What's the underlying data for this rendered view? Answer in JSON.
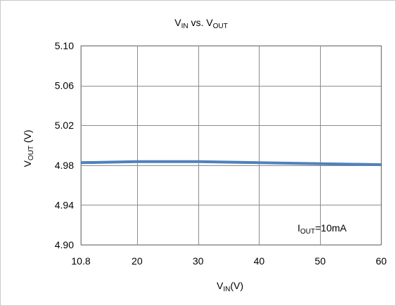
{
  "chart_data": {
    "type": "line",
    "title": {
      "main": "V",
      "main_sub": "IN",
      "mid": " vs. V",
      "tail_sub": "OUT"
    },
    "xlabel": {
      "main": "V",
      "sub": "IN",
      "unit": "(V)"
    },
    "ylabel": {
      "main": "V",
      "sub": "OUT",
      "unit": " (V)"
    },
    "annotation": {
      "main": "I",
      "sub": "OUT",
      "text": "=10mA"
    },
    "xlim": [
      10.8,
      60
    ],
    "ylim": [
      4.9,
      5.1
    ],
    "x_ticks": [
      10.8,
      20,
      30,
      40,
      50,
      60
    ],
    "x_tick_labels": [
      "10.8",
      "20",
      "30",
      "40",
      "50",
      "60"
    ],
    "y_ticks": [
      4.9,
      4.94,
      4.98,
      5.02,
      5.06,
      5.1
    ],
    "y_tick_labels": [
      "4.90",
      "4.94",
      "4.98",
      "5.02",
      "5.06",
      "5.10"
    ],
    "grid": true,
    "series": [
      {
        "color": "#4f81bd",
        "x": [
          10.8,
          20,
          30,
          40,
          50,
          60
        ],
        "y": [
          4.9825,
          4.9835,
          4.9835,
          4.9825,
          4.9815,
          4.9805
        ]
      }
    ]
  }
}
